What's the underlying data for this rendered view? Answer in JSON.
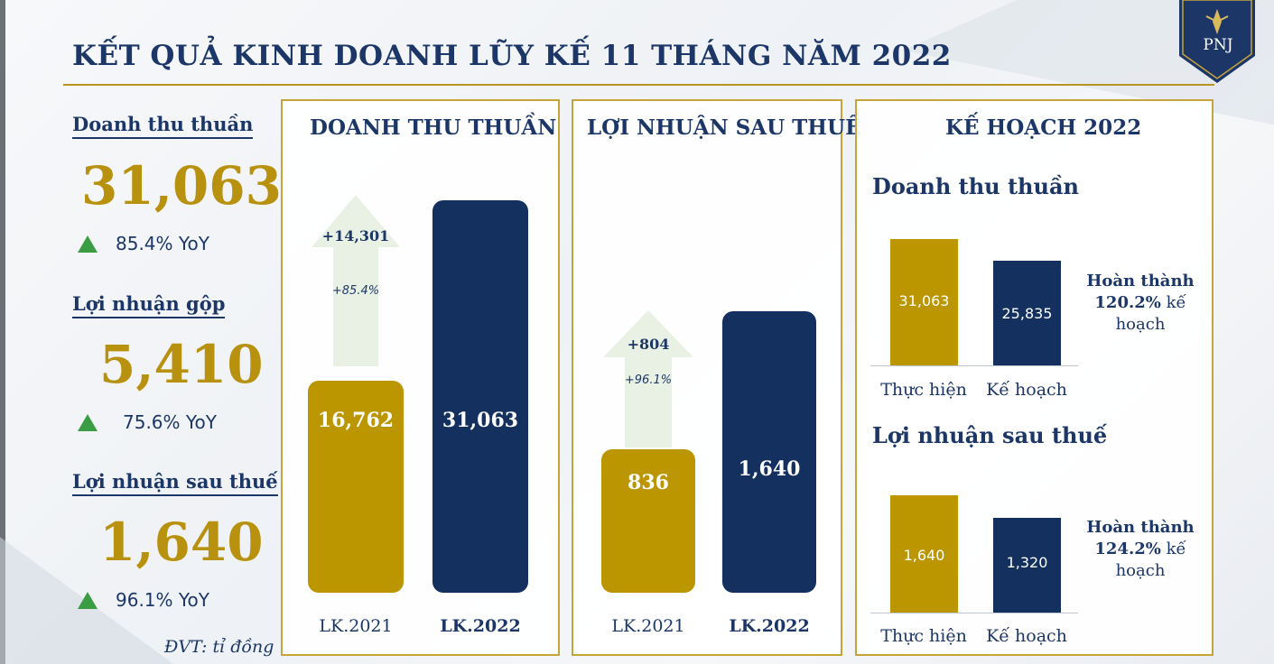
{
  "title": "KẾT QUẢ KINH DOANH LŨY KẾ 11 THÁNG NĂM 2022",
  "logo_text": "PNJ",
  "kpis": [
    {
      "label": "Doanh thu thuần",
      "value": "31,063",
      "yoy": "85.4% YoY"
    },
    {
      "label": "Lợi nhuận gộp",
      "value": "5,410",
      "yoy": "75.6% YoY"
    },
    {
      "label": "Lợi nhuận sau thuế",
      "value": "1,640",
      "yoy": "96.1% YoY"
    }
  ],
  "unit_note": "ĐVT: tỉ đồng",
  "colors": {
    "gold": "#bb9600",
    "navy": "#13305f",
    "arrow": "#e8f1e3",
    "up": "#3a9d43"
  },
  "chart_data": [
    {
      "type": "bar",
      "title": "DOANH THU THUẦN",
      "categories": [
        "LK.2021",
        "LK.2022"
      ],
      "values": [
        16762,
        31063
      ],
      "labels": [
        "16,762",
        "31,063"
      ],
      "change": {
        "value": "+14,301",
        "pct": "+85.4%"
      }
    },
    {
      "type": "bar",
      "title": "LỢI NHUẬN SAU THUẾ",
      "categories": [
        "LK.2021",
        "LK.2022"
      ],
      "values": [
        836,
        1640
      ],
      "labels": [
        "836",
        "1,640"
      ],
      "change": {
        "value": "+804",
        "pct": "+96.1%"
      }
    },
    {
      "type": "bar",
      "panel_title": "KẾ HOẠCH 2022",
      "title": "Doanh thu thuần",
      "categories": [
        "Thực hiện",
        "Kế hoạch"
      ],
      "values": [
        31063,
        25835
      ],
      "labels": [
        "31,063",
        "25,835"
      ],
      "completion": {
        "prefix": "Hoàn thành",
        "pct": "120.2%",
        "suffix1": "kế",
        "suffix2": "hoạch"
      }
    },
    {
      "type": "bar",
      "title": "Lợi nhuận sau thuế",
      "categories": [
        "Thực hiện",
        "Kế hoạch"
      ],
      "values": [
        1640,
        1320
      ],
      "labels": [
        "1,640",
        "1,320"
      ],
      "completion": {
        "prefix": "Hoàn thành",
        "pct": "124.2%",
        "suffix1": "kế",
        "suffix2": "hoạch"
      }
    }
  ]
}
